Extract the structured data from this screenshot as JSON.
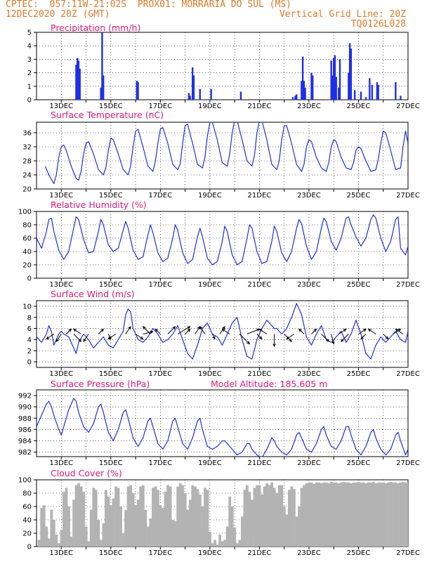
{
  "header": {
    "line1_left": "CPTEC:  057:11W-21:02S  PROX01: MORRARIA DO SUL (MS)",
    "line2_left": "12DEC2020 20Z (GMT)",
    "line2_right": "Vertical Grid Line: 20Z",
    "line3_right": "TQ0126L028"
  },
  "x_tick_labels": [
    "13DEC",
    "15DEC",
    "17DEC",
    "19DEC",
    "21DEC",
    "23DEC",
    "25DEC",
    "27DEC"
  ],
  "x_tick_days": [
    13,
    15,
    17,
    19,
    21,
    23,
    25,
    27
  ],
  "colors": {
    "line": "#1f2fe8",
    "bars": "#1f2fe8",
    "cloud": "#b3b3b3",
    "grid": "#000000",
    "title": "#e0187a",
    "header": "#e0782a"
  },
  "chart_data": [
    {
      "id": "precip",
      "type": "bar",
      "title": "Precipitation (mm/h)",
      "ylim": [
        0,
        5
      ],
      "yticks": [
        0,
        1,
        2,
        3,
        4,
        5
      ],
      "grid": "dotted",
      "x_unit": "day of December 2020 (20Z = integer)",
      "x": [
        13.6,
        13.65,
        13.7,
        13.75,
        14.6,
        14.65,
        14.7,
        16.05,
        16.1,
        18.15,
        18.2,
        18.3,
        18.35,
        18.6,
        19.05,
        20.25,
        22.35,
        22.45,
        22.5,
        22.7,
        22.75,
        22.8,
        22.85,
        23.1,
        23.15,
        23.9,
        23.95,
        24.0,
        24.05,
        24.1,
        24.2,
        24.25,
        24.6,
        24.65,
        24.7,
        24.85,
        25.1,
        25.3,
        25.45,
        25.55,
        25.75,
        25.8,
        26.5,
        26.7
      ],
      "values": [
        2.6,
        3.1,
        2.9,
        2.3,
        0.9,
        5.0,
        1.8,
        1.4,
        1.3,
        0.5,
        0.3,
        2.4,
        1.8,
        0.8,
        0.8,
        0.6,
        0.2,
        0.3,
        0.4,
        1.4,
        3.2,
        1.4,
        0.9,
        2.0,
        1.8,
        2.9,
        1.8,
        3.1,
        3.3,
        1.7,
        0.9,
        3.0,
        2.0,
        4.2,
        3.8,
        0.7,
        0.6,
        0.2,
        1.6,
        1.1,
        1.3,
        1.1,
        1.3,
        0.3
      ]
    },
    {
      "id": "temp",
      "type": "line",
      "title": "Surface Temperature (nC)",
      "ylim": [
        20,
        39
      ],
      "yticks": [
        20,
        24,
        28,
        32,
        36
      ],
      "grid": "dotted",
      "x_unit": "day of December 2020 (20Z = integer)",
      "x": [
        12.35,
        12.5,
        12.7,
        12.8,
        12.9,
        13.0,
        13.1,
        13.2,
        13.4,
        13.6,
        13.7,
        13.8,
        13.9,
        14.0,
        14.1,
        14.3,
        14.5,
        14.7,
        14.8,
        14.9,
        15.0,
        15.1,
        15.3,
        15.5,
        15.7,
        15.8,
        15.9,
        16.0,
        16.1,
        16.3,
        16.5,
        16.7,
        16.8,
        16.9,
        17.0,
        17.1,
        17.3,
        17.5,
        17.7,
        17.8,
        17.9,
        18.0,
        18.1,
        18.3,
        18.5,
        18.7,
        18.8,
        18.9,
        19.0,
        19.1,
        19.3,
        19.5,
        19.7,
        19.8,
        19.9,
        20.0,
        20.1,
        20.3,
        20.5,
        20.7,
        20.8,
        20.9,
        21.0,
        21.1,
        21.3,
        21.5,
        21.7,
        21.8,
        21.9,
        22.0,
        22.1,
        22.3,
        22.5,
        22.7,
        22.8,
        22.9,
        23.0,
        23.1,
        23.3,
        23.5,
        23.7,
        23.8,
        23.9,
        24.0,
        24.1,
        24.3,
        24.5,
        24.7,
        24.8,
        24.9,
        25.0,
        25.1,
        25.3,
        25.5,
        25.7,
        25.8,
        25.9,
        26.0,
        26.1,
        26.3,
        26.5,
        26.7,
        26.8,
        26.9,
        27.0
      ],
      "values": [
        26.5,
        24.0,
        21.5,
        24.0,
        29.0,
        32.0,
        32.5,
        31.0,
        26.5,
        23.0,
        22.5,
        25.0,
        30.0,
        33.0,
        33.5,
        30.0,
        25.5,
        24.0,
        26.0,
        31.0,
        34.5,
        34.0,
        30.0,
        25.5,
        24.0,
        26.5,
        32.0,
        36.5,
        37.0,
        32.0,
        26.5,
        25.0,
        28.0,
        33.0,
        37.0,
        37.5,
        33.0,
        27.0,
        25.5,
        27.0,
        33.0,
        38.0,
        38.5,
        33.0,
        27.0,
        26.0,
        29.0,
        35.0,
        39.0,
        39.0,
        34.0,
        27.5,
        26.5,
        30.0,
        36.0,
        39.5,
        39.5,
        34.0,
        28.0,
        26.5,
        29.5,
        36.0,
        39.5,
        39.5,
        34.0,
        27.0,
        25.5,
        28.0,
        34.0,
        38.0,
        38.0,
        33.0,
        27.0,
        25.0,
        27.0,
        32.0,
        34.0,
        33.5,
        29.0,
        26.0,
        25.0,
        27.5,
        32.0,
        34.0,
        33.5,
        29.0,
        26.0,
        25.5,
        27.5,
        31.0,
        32.0,
        31.5,
        28.0,
        25.0,
        25.5,
        28.5,
        33.0,
        36.5,
        36.0,
        31.0,
        25.5,
        26.0,
        32.0,
        36.5,
        33.0
      ]
    },
    {
      "id": "rh",
      "type": "line",
      "title": "Relative Humidity (%)",
      "ylim": [
        0,
        100
      ],
      "yticks": [
        0,
        20,
        40,
        60,
        80,
        100
      ],
      "grid": "dotted",
      "x_unit": "day of December 2020 (20Z = integer)",
      "x": [
        12.0,
        12.2,
        12.4,
        12.5,
        12.6,
        12.7,
        12.9,
        13.1,
        13.3,
        13.5,
        13.6,
        13.7,
        13.9,
        14.1,
        14.3,
        14.5,
        14.6,
        14.7,
        14.9,
        15.1,
        15.3,
        15.5,
        15.6,
        15.7,
        15.9,
        16.1,
        16.3,
        16.5,
        16.6,
        16.7,
        16.9,
        17.1,
        17.3,
        17.5,
        17.6,
        17.7,
        17.9,
        18.1,
        18.3,
        18.5,
        18.6,
        18.7,
        18.9,
        19.1,
        19.3,
        19.5,
        19.6,
        19.7,
        19.9,
        20.1,
        20.3,
        20.5,
        20.6,
        20.7,
        20.9,
        21.1,
        21.3,
        21.5,
        21.6,
        21.7,
        21.9,
        22.1,
        22.3,
        22.5,
        22.6,
        22.7,
        22.9,
        23.1,
        23.3,
        23.5,
        23.6,
        23.7,
        23.9,
        24.1,
        24.3,
        24.5,
        24.6,
        24.7,
        24.9,
        25.1,
        25.3,
        25.5,
        25.6,
        25.7,
        25.9,
        26.1,
        26.3,
        26.5,
        26.6,
        26.7,
        26.9,
        27.0
      ],
      "values": [
        60,
        45,
        70,
        88,
        90,
        70,
        42,
        28,
        40,
        75,
        92,
        88,
        58,
        38,
        40,
        70,
        88,
        80,
        50,
        40,
        45,
        72,
        85,
        75,
        42,
        28,
        32,
        65,
        80,
        68,
        38,
        25,
        30,
        60,
        80,
        72,
        38,
        22,
        28,
        62,
        75,
        62,
        30,
        20,
        25,
        55,
        78,
        70,
        35,
        20,
        25,
        60,
        80,
        75,
        40,
        22,
        25,
        55,
        78,
        70,
        38,
        25,
        40,
        75,
        88,
        82,
        48,
        28,
        40,
        75,
        90,
        85,
        55,
        42,
        60,
        90,
        92,
        80,
        62,
        48,
        60,
        88,
        95,
        90,
        60,
        40,
        55,
        88,
        92,
        45,
        35,
        48
      ]
    },
    {
      "id": "wind",
      "type": "line",
      "title": "Surface Wind (m/s)",
      "ylim": [
        -1,
        11
      ],
      "yticks": [
        0,
        2,
        4,
        6,
        8,
        10
      ],
      "grid": "dotted",
      "x_unit": "day of December 2020 (20Z = integer)",
      "x": [
        12.0,
        12.2,
        12.4,
        12.5,
        12.6,
        12.7,
        12.9,
        13.0,
        13.1,
        13.3,
        13.5,
        13.6,
        13.7,
        13.9,
        14.1,
        14.3,
        14.5,
        14.7,
        14.9,
        15.1,
        15.3,
        15.5,
        15.6,
        15.7,
        15.8,
        15.9,
        16.1,
        16.3,
        16.5,
        16.7,
        16.9,
        17.1,
        17.3,
        17.5,
        17.7,
        17.9,
        18.1,
        18.3,
        18.5,
        18.7,
        18.9,
        19.1,
        19.3,
        19.5,
        19.7,
        19.9,
        20.1,
        20.3,
        20.5,
        20.7,
        20.9,
        21.1,
        21.3,
        21.5,
        21.6,
        21.7,
        21.9,
        22.1,
        22.3,
        22.5,
        22.7,
        22.9,
        23.1,
        23.3,
        23.5,
        23.7,
        23.9,
        24.1,
        24.3,
        24.5,
        24.7,
        24.9,
        25.1,
        25.3,
        25.5,
        25.7,
        25.9,
        26.1,
        26.3,
        26.5,
        26.7,
        26.9,
        27.0
      ],
      "values": [
        4.5,
        3.5,
        5.0,
        6.5,
        5.5,
        3.0,
        5.0,
        5.5,
        5.0,
        4.5,
        2.5,
        1.5,
        3.5,
        5.0,
        4.0,
        2.5,
        3.5,
        4.5,
        3.0,
        2.5,
        4.0,
        5.5,
        8.5,
        9.5,
        9.0,
        6.0,
        4.0,
        3.5,
        4.5,
        6.0,
        5.0,
        3.5,
        4.0,
        5.0,
        6.5,
        4.0,
        1.5,
        0.5,
        3.0,
        6.0,
        7.0,
        5.0,
        4.5,
        3.0,
        5.0,
        7.0,
        8.0,
        4.0,
        1.0,
        0.5,
        4.0,
        6.0,
        7.5,
        6.5,
        6.0,
        6.0,
        5.0,
        6.0,
        8.0,
        10.5,
        8.5,
        4.5,
        3.0,
        5.0,
        6.5,
        4.0,
        3.5,
        4.5,
        5.5,
        3.5,
        5.0,
        7.5,
        5.0,
        1.5,
        0.5,
        3.0,
        4.5,
        3.5,
        4.5,
        5.5,
        4.0,
        3.5,
        5.5
      ],
      "arrows_x": [
        12.7,
        13.0,
        13.2,
        13.5,
        13.8,
        14.1,
        14.5,
        14.9,
        15.2,
        15.6,
        16.0,
        16.3,
        16.6,
        17.0,
        17.3,
        17.7,
        18.0,
        18.4,
        18.8,
        19.1,
        19.4,
        19.8,
        20.2,
        20.5,
        20.9,
        21.3,
        21.6,
        22.0,
        22.4,
        22.8,
        23.1,
        23.5,
        23.9,
        24.2,
        24.6,
        25.0,
        25.3,
        25.7,
        26.0,
        26.4,
        26.8
      ],
      "arrows_u": [
        -1.5,
        -1.0,
        1.0,
        1.5,
        -1.5,
        -1.0,
        1.0,
        0.5,
        -1.5,
        1.0,
        1.5,
        2.0,
        -1.5,
        -1.0,
        1.5,
        2.5,
        1.0,
        1.0,
        -1.0,
        0.5,
        1.0,
        -1.5,
        2.0,
        2.5,
        1.0,
        -1.5,
        0.0,
        1.5,
        -1.5,
        -1.0,
        1.0,
        1.5,
        0.5,
        1.5,
        -1.5,
        1.5,
        -1.0,
        -1.5,
        1.0,
        1.5,
        -1.5
      ],
      "arrows_v": [
        -1.0,
        -1.5,
        1.0,
        -1.5,
        1.0,
        -1.5,
        1.0,
        -1.0,
        -1.0,
        1.5,
        -1.0,
        0.5,
        1.5,
        1.0,
        1.5,
        1.5,
        1.0,
        1.5,
        1.5,
        -1.0,
        1.5,
        1.0,
        -2.0,
        1.0,
        -1.0,
        1.0,
        -2.5,
        -1.5,
        -1.0,
        1.0,
        1.0,
        -1.5,
        -2.0,
        1.0,
        -1.5,
        1.0,
        -1.0,
        1.0,
        -1.0,
        1.0,
        1.0
      ]
    },
    {
      "id": "pres",
      "type": "line",
      "title": "Surface Pressure (hPa)",
      "annotation": "Model Altitude: 185.605 m",
      "ylim": [
        981.2,
        993
      ],
      "yticks": [
        982,
        984,
        986,
        988,
        990,
        992
      ],
      "grid": "dotted",
      "x_unit": "day of December 2020 (20Z = integer)",
      "x": [
        12.0,
        12.2,
        12.4,
        12.5,
        12.6,
        12.7,
        12.9,
        13.0,
        13.1,
        13.3,
        13.5,
        13.6,
        13.7,
        13.9,
        14.1,
        14.3,
        14.5,
        14.6,
        14.7,
        14.9,
        15.1,
        15.3,
        15.5,
        15.6,
        15.7,
        15.9,
        16.1,
        16.3,
        16.5,
        16.6,
        16.7,
        16.9,
        17.1,
        17.3,
        17.5,
        17.6,
        17.7,
        17.9,
        18.1,
        18.3,
        18.5,
        18.6,
        18.7,
        18.9,
        19.1,
        19.3,
        19.5,
        19.6,
        19.7,
        19.9,
        20.1,
        20.3,
        20.5,
        20.6,
        20.7,
        20.9,
        21.1,
        21.3,
        21.5,
        21.6,
        21.7,
        21.9,
        22.1,
        22.3,
        22.5,
        22.6,
        22.7,
        22.9,
        23.1,
        23.3,
        23.5,
        23.6,
        23.7,
        23.9,
        24.1,
        24.3,
        24.5,
        24.6,
        24.7,
        24.9,
        25.1,
        25.3,
        25.5,
        25.6,
        25.7,
        25.9,
        26.1,
        26.3,
        26.5,
        26.6,
        26.7,
        26.9,
        27.0
      ],
      "values": [
        986.5,
        988.5,
        990.5,
        991.0,
        990.0,
        988.5,
        986.0,
        985.0,
        986.5,
        989.5,
        991.5,
        991.0,
        989.0,
        986.5,
        985.5,
        987.0,
        990.0,
        990.5,
        989.0,
        985.5,
        984.0,
        986.0,
        989.0,
        989.5,
        988.0,
        984.5,
        983.0,
        984.5,
        987.5,
        988.0,
        986.5,
        983.5,
        982.5,
        984.0,
        987.5,
        988.0,
        986.5,
        983.5,
        982.5,
        984.5,
        987.5,
        988.0,
        986.0,
        983.0,
        982.5,
        983.0,
        984.0,
        984.0,
        983.5,
        982.5,
        981.5,
        982.0,
        983.5,
        983.5,
        982.5,
        981.5,
        981.0,
        982.5,
        984.5,
        984.0,
        983.0,
        982.0,
        981.5,
        982.5,
        985.0,
        985.5,
        984.5,
        982.5,
        982.0,
        983.5,
        986.0,
        986.5,
        985.0,
        983.0,
        982.5,
        984.0,
        986.5,
        986.5,
        985.0,
        982.5,
        981.5,
        983.0,
        985.5,
        986.0,
        984.5,
        982.5,
        981.5,
        982.5,
        985.0,
        985.5,
        984.0,
        981.5,
        982.5
      ]
    },
    {
      "id": "cloud",
      "type": "area",
      "title": "Cloud Cover (%)",
      "ylim": [
        0,
        100
      ],
      "yticks": [
        0,
        20,
        40,
        60,
        80,
        100
      ],
      "grid": "dotted",
      "x_unit": "day of December 2020 (20Z = integer)",
      "x": [
        12.1,
        12.2,
        12.3,
        12.4,
        12.5,
        12.6,
        12.7,
        12.8,
        12.9,
        13.0,
        13.1,
        13.2,
        13.3,
        13.4,
        13.5,
        13.6,
        13.7,
        13.8,
        13.9,
        14.0,
        14.1,
        14.2,
        14.3,
        14.4,
        14.5,
        14.6,
        14.7,
        14.8,
        14.9,
        15.0,
        15.1,
        15.2,
        15.3,
        15.4,
        15.5,
        15.6,
        15.7,
        15.8,
        15.9,
        16.0,
        16.1,
        16.2,
        16.3,
        16.4,
        16.5,
        16.6,
        16.7,
        16.8,
        16.9,
        17.0,
        17.1,
        17.2,
        17.3,
        17.4,
        17.5,
        17.6,
        17.7,
        17.8,
        17.9,
        18.0,
        18.1,
        18.2,
        18.3,
        18.4,
        18.5,
        18.6,
        18.7,
        18.8,
        18.9,
        19.0,
        19.1,
        19.2,
        19.3,
        19.4,
        19.5,
        19.6,
        19.7,
        19.8,
        19.9,
        20.0,
        20.1,
        20.2,
        20.3,
        20.4,
        20.5,
        20.6,
        20.7,
        20.8,
        20.9,
        21.0,
        21.1,
        21.2,
        21.3,
        21.4,
        21.5,
        21.6,
        21.7,
        21.8,
        21.9,
        22.0,
        22.1,
        22.2,
        22.3,
        22.4,
        22.5,
        22.6,
        22.7,
        22.8,
        22.9,
        23.0,
        23.1,
        23.2,
        23.3,
        23.4,
        23.5,
        23.6,
        23.7,
        23.8,
        23.9,
        24.0,
        24.1,
        24.2,
        24.3,
        24.4,
        24.5,
        24.6,
        24.7,
        24.8,
        24.9,
        25.0,
        25.1,
        25.2,
        25.3,
        25.4,
        25.5,
        25.6,
        25.7,
        25.8,
        25.9,
        26.0,
        26.1,
        26.2,
        26.3,
        26.4,
        26.5,
        26.6,
        26.7,
        26.8,
        26.9,
        27.0
      ],
      "values": [
        10,
        58,
        62,
        30,
        12,
        55,
        40,
        18,
        5,
        25,
        82,
        88,
        60,
        15,
        70,
        92,
        95,
        90,
        82,
        30,
        8,
        55,
        88,
        85,
        40,
        10,
        35,
        85,
        75,
        62,
        72,
        90,
        88,
        60,
        20,
        55,
        90,
        92,
        80,
        62,
        70,
        90,
        92,
        55,
        30,
        42,
        88,
        90,
        85,
        62,
        58,
        82,
        92,
        90,
        40,
        38,
        90,
        95,
        92,
        80,
        55,
        70,
        92,
        90,
        86,
        78,
        60,
        88,
        85,
        22,
        5,
        10,
        3,
        18,
        8,
        10,
        30,
        75,
        60,
        28,
        5,
        10,
        45,
        85,
        92,
        82,
        70,
        88,
        92,
        92,
        78,
        90,
        95,
        92,
        96,
        88,
        80,
        92,
        92,
        60,
        48,
        85,
        90,
        86,
        45,
        60,
        88,
        92,
        95,
        96,
        96,
        94,
        96,
        96,
        95,
        96,
        96,
        95,
        97,
        96,
        96,
        95,
        96,
        97,
        96,
        96,
        95,
        96,
        96,
        97,
        96,
        96,
        95,
        96,
        96,
        97,
        95,
        96,
        96,
        96,
        95,
        96,
        97,
        96,
        96,
        95,
        96,
        97,
        96,
        96
      ]
    }
  ]
}
